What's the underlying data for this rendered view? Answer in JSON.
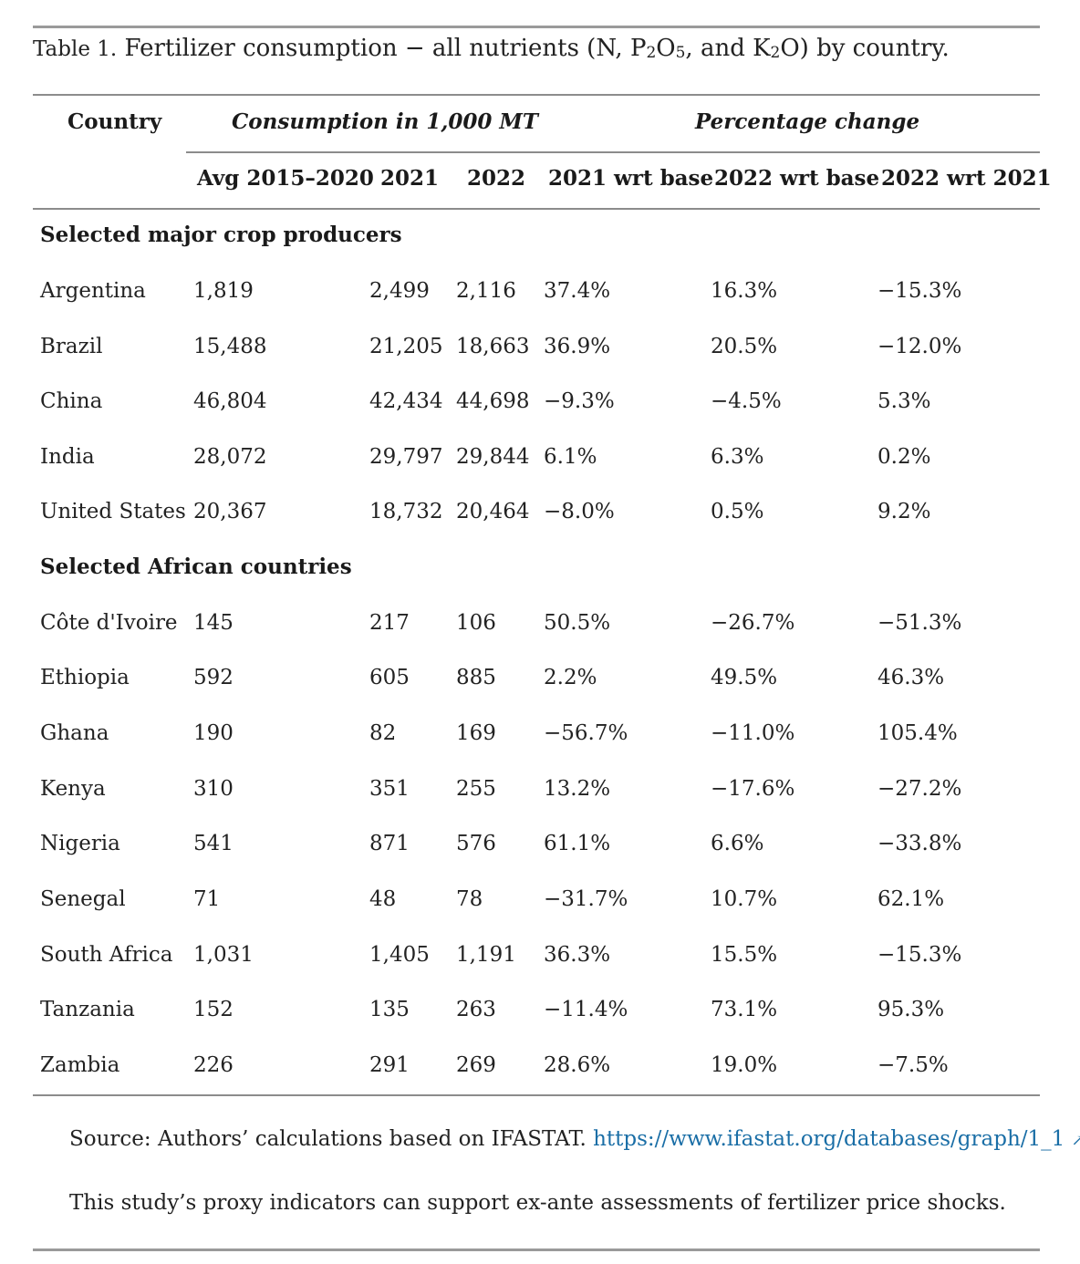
{
  "caption": {
    "label": "Table 1.",
    "text_before": "Fertilizer consumption − all nutrients (N, P",
    "sub1": "2",
    "mid1": "O",
    "sub2": "5",
    "mid2": ", and K",
    "sub3": "2",
    "text_after": "O) by country."
  },
  "header": {
    "country": "Country",
    "group_consumption": "Consumption in 1,000 MT",
    "group_change": "Percentage change",
    "columns": [
      "Avg 2015–2020",
      "2021",
      "2022",
      "2021 wrt base",
      "2022 wrt base",
      "2022 wrt 2021"
    ]
  },
  "sections": [
    {
      "title": "Selected major crop producers",
      "rows": [
        [
          "Argentina",
          "1,819",
          "2,499",
          "2,116",
          "37.4%",
          "16.3%",
          "−15.3%"
        ],
        [
          "Brazil",
          "15,488",
          "21,205",
          "18,663",
          "36.9%",
          "20.5%",
          "−12.0%"
        ],
        [
          "China",
          "46,804",
          "42,434",
          "44,698",
          "−9.3%",
          "−4.5%",
          "5.3%"
        ],
        [
          "India",
          "28,072",
          "29,797",
          "29,844",
          "6.1%",
          "6.3%",
          "0.2%"
        ],
        [
          "United States",
          "20,367",
          "18,732",
          "20,464",
          "−8.0%",
          "0.5%",
          "9.2%"
        ]
      ]
    },
    {
      "title": "Selected African countries",
      "rows": [
        [
          "Côte d'Ivoire",
          "145",
          "217",
          "106",
          "50.5%",
          "−26.7%",
          "−51.3%"
        ],
        [
          "Ethiopia",
          "592",
          "605",
          "885",
          "2.2%",
          "49.5%",
          "46.3%"
        ],
        [
          "Ghana",
          "190",
          "82",
          "169",
          "−56.7%",
          "−11.0%",
          "105.4%"
        ],
        [
          "Kenya",
          "310",
          "351",
          "255",
          "13.2%",
          "−17.6%",
          "−27.2%"
        ],
        [
          "Nigeria",
          "541",
          "871",
          "576",
          "61.1%",
          "6.6%",
          "−33.8%"
        ],
        [
          "Senegal",
          "71",
          "48",
          "78",
          "−31.7%",
          "10.7%",
          "62.1%"
        ],
        [
          "South Africa",
          "1,031",
          "1,405",
          "1,191",
          "36.3%",
          "15.5%",
          "−15.3%"
        ],
        [
          "Tanzania",
          "152",
          "135",
          "263",
          "−11.4%",
          "73.1%",
          "95.3%"
        ],
        [
          "Zambia",
          "226",
          "291",
          "269",
          "28.6%",
          "19.0%",
          "−7.5%"
        ]
      ]
    }
  ],
  "footer": {
    "source_text": "Source: Authors’ calculations based on IFASTAT.",
    "source_link": "https://www.ifastat.org/databases/graph/1_1",
    "link_icon": "↗",
    "source_end": ".",
    "note": "This study’s proxy indicators can support ex-ante assessments of fertilizer price shocks."
  },
  "colors": {
    "link": "#1a6ea6",
    "rule": "#8c8c8c"
  }
}
